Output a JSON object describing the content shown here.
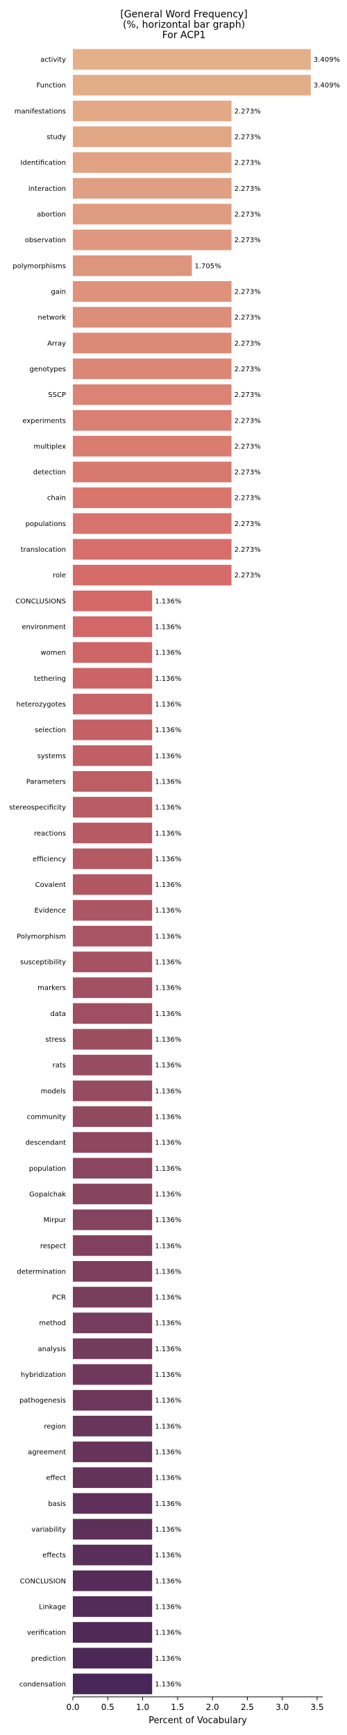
{
  "chart_data": {
    "type": "bar",
    "orientation": "horizontal",
    "title_lines": [
      "[General Word Frequency]",
      "(%, horizontal bar graph)",
      "For ACP1"
    ],
    "xlabel": "Percent of Vocabulary",
    "ylabel": "",
    "xlim": [
      0,
      3.58
    ],
    "xticks": [
      "0.0",
      "0.5",
      "1.0",
      "1.5",
      "2.0",
      "2.5",
      "3.0",
      "3.5"
    ],
    "grid": false,
    "palette": "flare (light orange to dark purple)",
    "categories": [
      "activity",
      "Function",
      "manifestations",
      "study",
      "Identification",
      "interaction",
      "abortion",
      "observation",
      "polymorphisms",
      "gain",
      "network",
      "Array",
      "genotypes",
      "SSCP",
      "experiments",
      "multiplex",
      "detection",
      "chain",
      "populations",
      "translocation",
      "role",
      "CONCLUSIONS",
      "environment",
      "women",
      "tethering",
      "heterozygotes",
      "selection",
      "systems",
      "Parameters",
      "stereospecificity",
      "reactions",
      "efficiency",
      "Covalent",
      "Evidence",
      "Polymorphism",
      "susceptibility",
      "markers",
      "data",
      "stress",
      "rats",
      "models",
      "community",
      "descendant",
      "population",
      "Gopalchak",
      "Mirpur",
      "respect",
      "determination",
      "PCR",
      "method",
      "analysis",
      "hybridization",
      "pathogenesis",
      "region",
      "agreement",
      "effect",
      "basis",
      "variability",
      "effects",
      "CONCLUSION",
      "Linkage",
      "verification",
      "prediction",
      "condensation"
    ],
    "values": [
      3.409,
      3.409,
      2.273,
      2.273,
      2.273,
      2.273,
      2.273,
      2.273,
      1.705,
      2.273,
      2.273,
      2.273,
      2.273,
      2.273,
      2.273,
      2.273,
      2.273,
      2.273,
      2.273,
      2.273,
      2.273,
      1.136,
      1.136,
      1.136,
      1.136,
      1.136,
      1.136,
      1.136,
      1.136,
      1.136,
      1.136,
      1.136,
      1.136,
      1.136,
      1.136,
      1.136,
      1.136,
      1.136,
      1.136,
      1.136,
      1.136,
      1.136,
      1.136,
      1.136,
      1.136,
      1.136,
      1.136,
      1.136,
      1.136,
      1.136,
      1.136,
      1.136,
      1.136,
      1.136,
      1.136,
      1.136,
      1.136,
      1.136,
      1.136,
      1.136,
      1.136,
      1.136,
      1.136,
      1.136
    ],
    "value_labels": [
      "3.409%",
      "3.409%",
      "2.273%",
      "2.273%",
      "2.273%",
      "2.273%",
      "2.273%",
      "2.273%",
      "1.705%",
      "2.273%",
      "2.273%",
      "2.273%",
      "2.273%",
      "2.273%",
      "2.273%",
      "2.273%",
      "2.273%",
      "2.273%",
      "2.273%",
      "2.273%",
      "2.273%",
      "1.136%",
      "1.136%",
      "1.136%",
      "1.136%",
      "1.136%",
      "1.136%",
      "1.136%",
      "1.136%",
      "1.136%",
      "1.136%",
      "1.136%",
      "1.136%",
      "1.136%",
      "1.136%",
      "1.136%",
      "1.136%",
      "1.136%",
      "1.136%",
      "1.136%",
      "1.136%",
      "1.136%",
      "1.136%",
      "1.136%",
      "1.136%",
      "1.136%",
      "1.136%",
      "1.136%",
      "1.136%",
      "1.136%",
      "1.136%",
      "1.136%",
      "1.136%",
      "1.136%",
      "1.136%",
      "1.136%",
      "1.136%",
      "1.136%",
      "1.136%",
      "1.136%",
      "1.136%",
      "1.136%",
      "1.136%",
      "1.136%"
    ]
  }
}
